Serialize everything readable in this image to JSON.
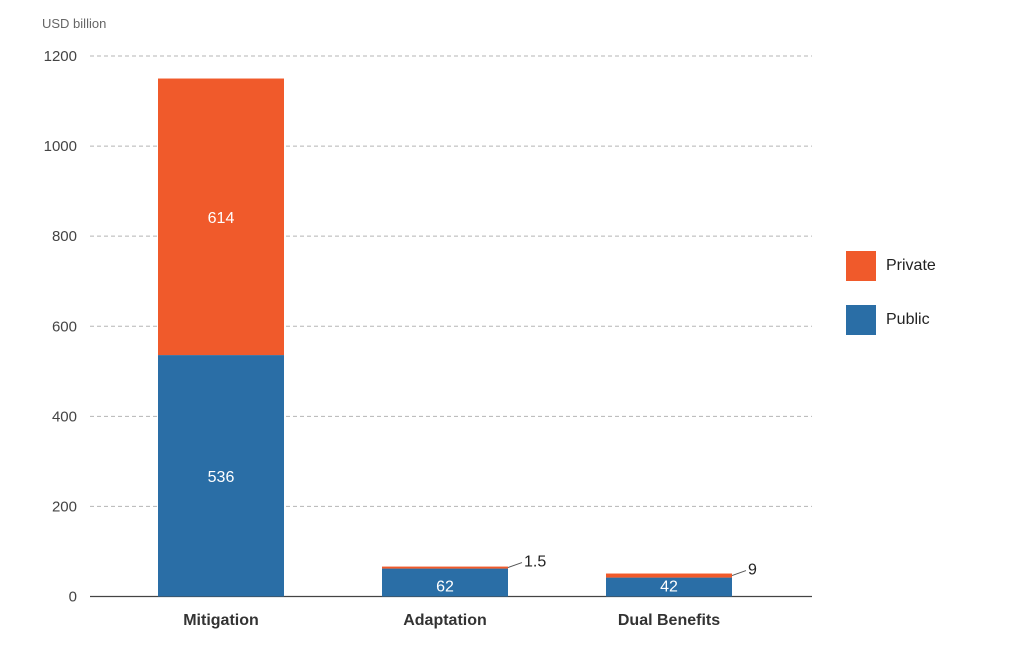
{
  "chart_data": {
    "type": "bar",
    "stacked": true,
    "ylabel": "USD billion",
    "ylim": [
      0,
      1200
    ],
    "yticks": [
      "0",
      "200",
      "400",
      "600",
      "800",
      "1000",
      "1200"
    ],
    "grid": true,
    "legend_position": "right",
    "categories": [
      "Mitigation",
      "Adaptation",
      "Dual Benefits"
    ],
    "series": [
      {
        "name": "Public",
        "color": "#2a6ea6",
        "values": [
          536,
          62,
          42
        ],
        "labels": [
          "536",
          "62",
          "42"
        ]
      },
      {
        "name": "Private",
        "color": "#f05a2b",
        "values": [
          614,
          1.5,
          9
        ],
        "labels": [
          "614",
          "1.5",
          "9"
        ]
      }
    ]
  }
}
